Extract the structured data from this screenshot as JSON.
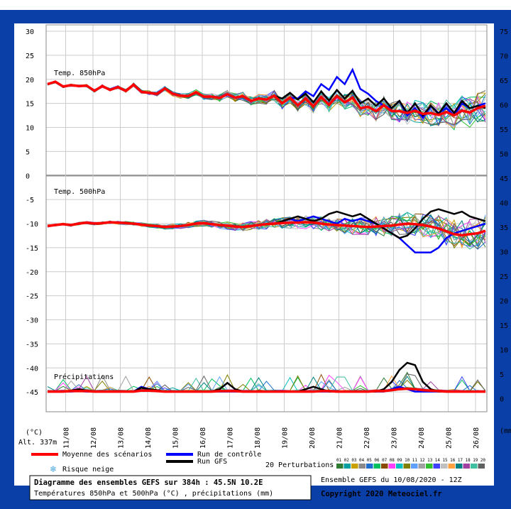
{
  "colors": {
    "frame": "#0a3fa8",
    "mean": "#ff0000",
    "control": "#0000ff",
    "gfs": "#000000",
    "snow": "#4aa8e0"
  },
  "perturbation_colors": [
    "#2e7d32",
    "#00a0a0",
    "#c8a000",
    "#8a8a8a",
    "#1e6fd0",
    "#00c060",
    "#8a4a00",
    "#ff40ff",
    "#00c0c0",
    "#808000",
    "#60a0ff",
    "#a0a0a0",
    "#30c030",
    "#4040ff",
    "#c0c0c0",
    "#ffa040",
    "#008080",
    "#a040a0",
    "#40c0a0",
    "#606060"
  ],
  "chart_data": {
    "type": "line",
    "x_categories": [
      "11/08",
      "12/08",
      "13/08",
      "14/08",
      "15/08",
      "16/08",
      "17/08",
      "18/08",
      "19/08",
      "20/08",
      "21/08",
      "22/08",
      "23/08",
      "24/08",
      "25/08",
      "26/08"
    ],
    "left_axis": {
      "unit": "(°C)",
      "ticks": [
        30,
        25,
        20,
        15,
        10,
        5,
        0,
        -5,
        -10,
        -15,
        -20,
        -25,
        -30,
        -35,
        -40,
        -45
      ]
    },
    "right_axis": {
      "unit": "(mm",
      "ticks": [
        75,
        70,
        65,
        60,
        55,
        50,
        45,
        40,
        35,
        30,
        25,
        20,
        15,
        10,
        5,
        0
      ]
    },
    "altitude_label": "Alt. 337m",
    "panels": {
      "t850": {
        "label": "Temp. 850hPa",
        "mean": [
          19,
          19.5,
          18.5,
          18.8,
          18.6,
          18.7,
          17.6,
          18.6,
          17.8,
          18.4,
          17.6,
          18.9,
          17.4,
          17.2,
          17.0,
          18.1,
          17.0,
          16.6,
          16.5,
          17.3,
          16.4,
          16.4,
          16.1,
          16.9,
          16.2,
          16.5,
          15.5,
          16.0,
          15.8,
          16.6,
          15.0,
          16.2,
          14.6,
          16.0,
          14.4,
          16.3,
          14.7,
          16.5,
          15.2,
          16.2,
          14.0,
          14.3,
          13.4,
          14.6,
          13.4,
          13.4,
          13.0,
          13.5,
          12.8,
          13.0,
          12.6,
          13.2,
          12.5,
          13.5,
          13.1,
          14.0,
          14.5
        ],
        "control": [
          19,
          19.5,
          18.5,
          18.8,
          18.6,
          18.7,
          17.6,
          18.6,
          17.8,
          18.4,
          17.6,
          18.9,
          17.4,
          17.2,
          17.0,
          18.1,
          17.0,
          16.6,
          16.5,
          17.3,
          16.4,
          16.4,
          16.1,
          16.9,
          16.2,
          16.5,
          15.5,
          16.0,
          15.8,
          16.6,
          15.0,
          16.2,
          16.0,
          17.5,
          16.5,
          19.0,
          17.8,
          20.5,
          19.0,
          22.0,
          18.0,
          17.0,
          15.5,
          14.5,
          14.0,
          15.5,
          12.5,
          14.0,
          12.0,
          14.5,
          13.0,
          14.0,
          12.5,
          15.0,
          14.0,
          14.5,
          15.0
        ],
        "gfs": [
          19,
          19.5,
          18.5,
          18.8,
          18.6,
          18.7,
          17.6,
          18.6,
          17.8,
          18.4,
          17.6,
          18.9,
          17.4,
          17.2,
          17.0,
          18.1,
          17.0,
          16.6,
          16.5,
          17.3,
          16.4,
          16.4,
          16.1,
          16.9,
          16.2,
          16.5,
          15.5,
          16.0,
          15.8,
          16.6,
          16.0,
          17.2,
          15.8,
          17.0,
          15.2,
          17.5,
          15.6,
          17.8,
          16.0,
          17.6,
          15.0,
          16.0,
          14.5,
          16.0,
          14.0,
          15.5,
          13.0,
          15.0,
          12.5,
          14.5,
          12.8,
          15.0,
          13.0,
          15.5,
          14.0,
          14.5,
          14.0
        ]
      },
      "t500": {
        "label": "Temp. 500hPa",
        "mean": [
          -10.5,
          -10.3,
          -10.1,
          -10.3,
          -10.0,
          -9.8,
          -10.0,
          -9.9,
          -9.7,
          -9.8,
          -9.9,
          -10.0,
          -10.2,
          -10.4,
          -10.5,
          -10.7,
          -10.6,
          -10.5,
          -10.3,
          -10.0,
          -9.9,
          -10.1,
          -10.3,
          -10.4,
          -10.6,
          -10.7,
          -10.5,
          -10.3,
          -10.1,
          -10.0,
          -9.9,
          -9.8,
          -9.8,
          -9.7,
          -9.8,
          -10.0,
          -10.2,
          -10.3,
          -10.4,
          -10.5,
          -10.6,
          -10.7,
          -10.6,
          -10.5,
          -10.4,
          -10.2,
          -10.0,
          -10.1,
          -10.3,
          -10.6,
          -11.0,
          -11.6,
          -12.2,
          -12.4,
          -12.2,
          -12.0,
          -11.5
        ],
        "control": [
          -10.5,
          -10.3,
          -10.1,
          -10.3,
          -10.0,
          -9.8,
          -10.0,
          -9.9,
          -9.7,
          -9.8,
          -9.9,
          -10.0,
          -10.2,
          -10.4,
          -10.5,
          -10.7,
          -10.6,
          -10.5,
          -10.3,
          -10.0,
          -9.9,
          -10.1,
          -10.3,
          -10.4,
          -10.6,
          -10.7,
          -10.5,
          -10.3,
          -10.1,
          -10.0,
          -9.5,
          -9.0,
          -9.5,
          -9.0,
          -8.5,
          -9.0,
          -9.5,
          -10.0,
          -9.0,
          -9.5,
          -9.0,
          -9.5,
          -10.0,
          -11.0,
          -12.0,
          -13.0,
          -14.5,
          -16.0,
          -16.0,
          -16.0,
          -15.0,
          -13.0,
          -12.0,
          -11.5,
          -11.0,
          -10.5,
          -10.0
        ],
        "gfs": [
          -10.5,
          -10.3,
          -10.1,
          -10.3,
          -10.0,
          -9.8,
          -10.0,
          -9.9,
          -9.7,
          -9.8,
          -9.9,
          -10.0,
          -10.2,
          -10.4,
          -10.5,
          -10.7,
          -10.6,
          -10.5,
          -10.3,
          -10.0,
          -9.9,
          -10.1,
          -10.3,
          -10.4,
          -10.6,
          -10.7,
          -10.5,
          -10.3,
          -10.1,
          -10.0,
          -9.5,
          -9.0,
          -8.5,
          -9.0,
          -9.5,
          -9.0,
          -8.0,
          -7.5,
          -8.0,
          -8.5,
          -8.0,
          -9.0,
          -10.0,
          -11.0,
          -12.0,
          -13.0,
          -12.5,
          -11.0,
          -9.0,
          -7.5,
          -7.0,
          -7.5,
          -8.0,
          -7.5,
          -8.5,
          -9.0,
          -9.5
        ]
      },
      "precip": {
        "label": "Précipitations",
        "mean": [
          0,
          0,
          0,
          0.1,
          0.1,
          0.1,
          0,
          0,
          0,
          0,
          0,
          0,
          0.2,
          0.2,
          0.1,
          0,
          0,
          0,
          0,
          0,
          0,
          0,
          0.1,
          0.1,
          0.1,
          0,
          0,
          0,
          0,
          0,
          0,
          0,
          0,
          0,
          0,
          0.1,
          0.1,
          0,
          0,
          0,
          0,
          0,
          0.1,
          0.1,
          0.3,
          0.5,
          0.6,
          0.5,
          0.3,
          0.2,
          0.1,
          0,
          0,
          0,
          0,
          0,
          0
        ],
        "control": [
          0,
          0,
          0,
          0,
          0.1,
          0,
          0,
          0,
          0,
          0,
          0,
          0,
          1.0,
          0.5,
          0.2,
          0,
          0,
          0,
          0,
          0,
          0,
          0,
          0,
          0,
          0,
          0,
          0,
          0,
          0,
          0,
          0,
          0,
          0,
          0,
          0,
          0,
          0,
          0,
          0,
          0,
          0,
          0,
          0,
          0,
          0.5,
          1.0,
          0.5,
          0,
          0,
          0,
          0,
          0,
          0,
          0,
          0,
          0,
          0
        ],
        "gfs": [
          0,
          0,
          0,
          0.2,
          0.5,
          0.2,
          0,
          0,
          0,
          0,
          0,
          0,
          0.8,
          0.5,
          0.3,
          0,
          0,
          0,
          0,
          0,
          0,
          0,
          0.5,
          1.8,
          0.5,
          0,
          0,
          0,
          0,
          0,
          0,
          0,
          0,
          0.5,
          1.0,
          0.5,
          0,
          0,
          0,
          0,
          0,
          0,
          0,
          0.5,
          2.0,
          4.5,
          6.0,
          5.5,
          2.0,
          0.5,
          0,
          0,
          0,
          0,
          0,
          0,
          0
        ]
      }
    }
  },
  "legend": {
    "mean": "Moyenne des scénarios",
    "control": "Run de contrôle",
    "gfs": "Run GFS",
    "snow": "Risque neige",
    "perturbations_label": "20 Perturbations",
    "perturbation_numbers": "01 02 03 04 05 06 07 08 09 10 11 12 13 14 15 16 17 18 19 20"
  },
  "footer": {
    "title": "Diagramme des ensembles GEFS sur 384h : 45.5N 10.2E",
    "subtitle": "Températures 850hPa et 500hPa (°C) , précipitations (mm)",
    "run": "Ensemble GEFS du 10/08/2020 - 12Z",
    "copyright": "Copyright 2020 Meteociel.fr"
  }
}
